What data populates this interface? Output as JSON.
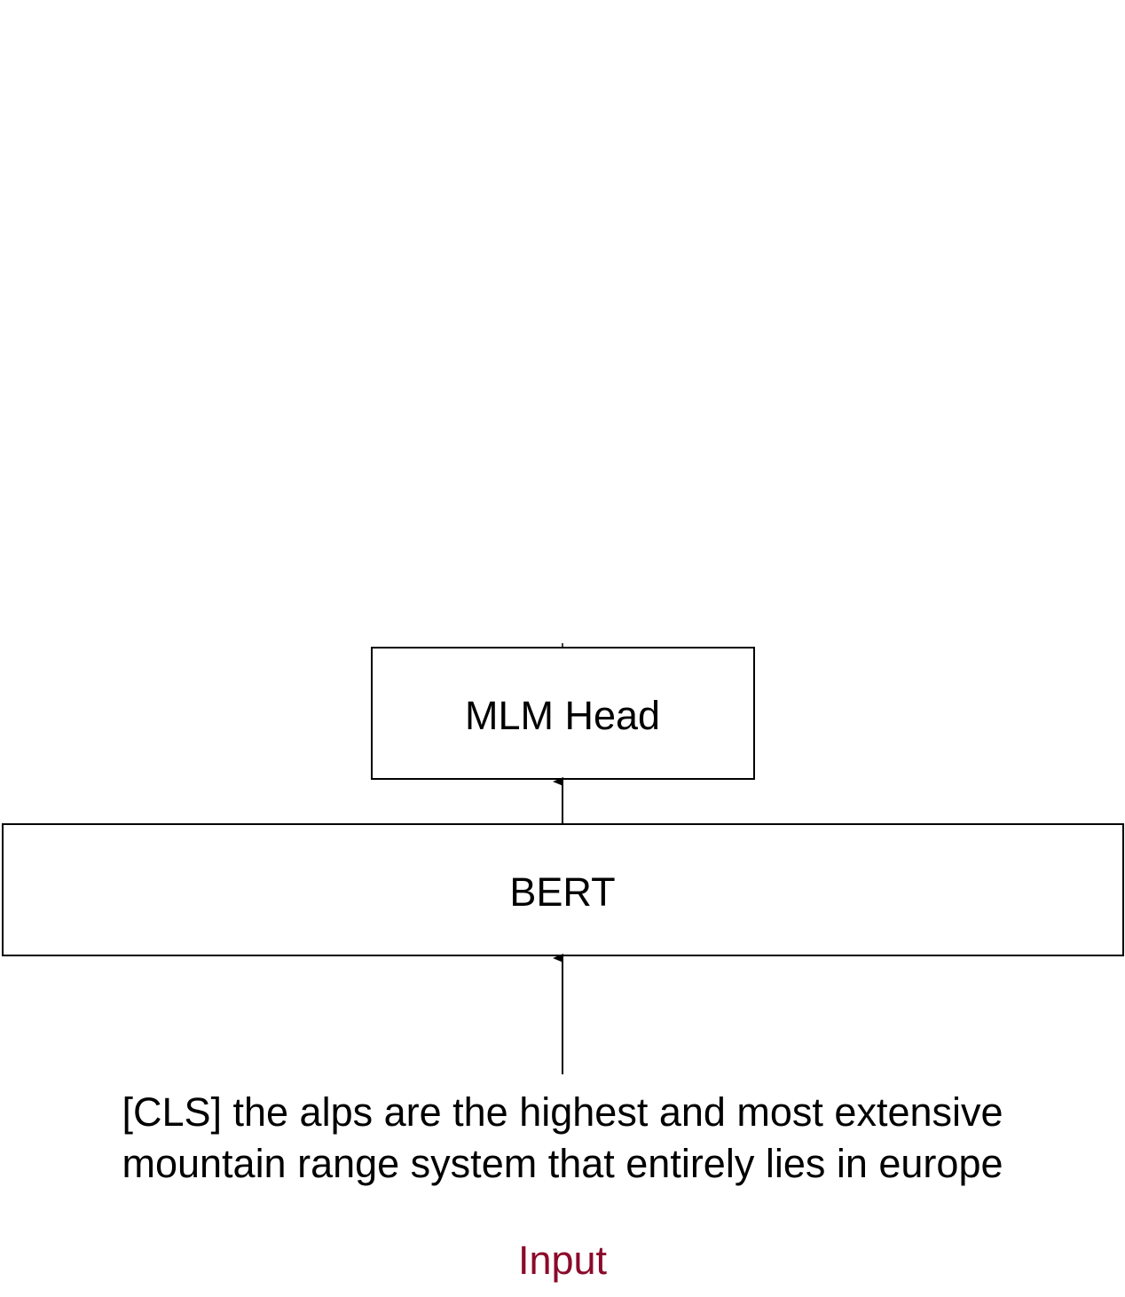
{
  "diagram": {
    "mlm_head": {
      "label": "MLM Head"
    },
    "bert": {
      "label": "BERT"
    },
    "input": {
      "lines": [
        "[CLS] the alps are the highest and most extensive",
        "mountain range system that entirely lies in europe"
      ],
      "caption": "Input"
    },
    "colors": {
      "stroke": "#000000",
      "caption": "#8b0a2a"
    }
  }
}
